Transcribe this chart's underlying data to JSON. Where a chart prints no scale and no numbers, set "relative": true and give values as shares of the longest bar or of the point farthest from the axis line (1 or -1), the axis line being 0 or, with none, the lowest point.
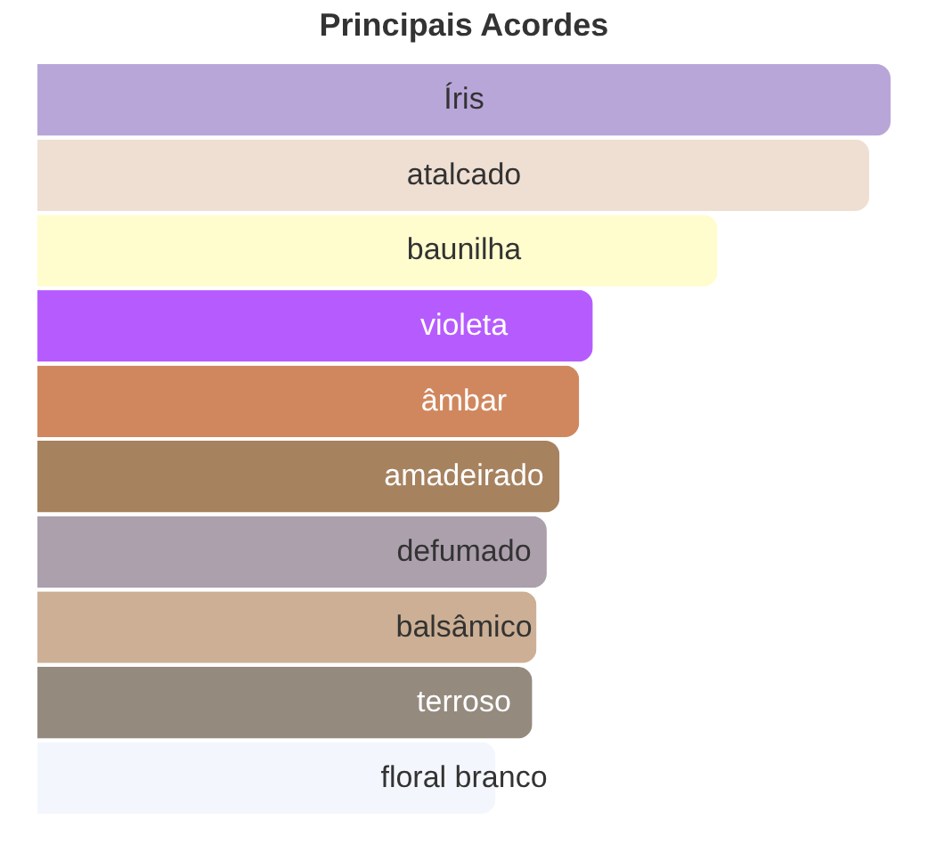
{
  "chart_data": {
    "type": "bar",
    "orientation": "horizontal",
    "relative": true,
    "title": "Principais Acordes",
    "tick_labels": false,
    "categories": [
      "Íris",
      "atalcado",
      "baunilha",
      "violeta",
      "âmbar",
      "amadeirado",
      "defumado",
      "balsâmico",
      "terroso",
      "floral branco"
    ],
    "values": [
      1,
      0.975,
      0.797,
      0.651,
      0.635,
      0.612,
      0.597,
      0.585,
      0.58,
      0.537
    ],
    "colors": [
      "#b8a6d9",
      "#efdfd2",
      "#fffccd",
      "#b65cff",
      "#d0875e",
      "#a6825f",
      "#aca0ad",
      "#ccaf94",
      "#948a7e",
      "#f3f6fd"
    ]
  }
}
